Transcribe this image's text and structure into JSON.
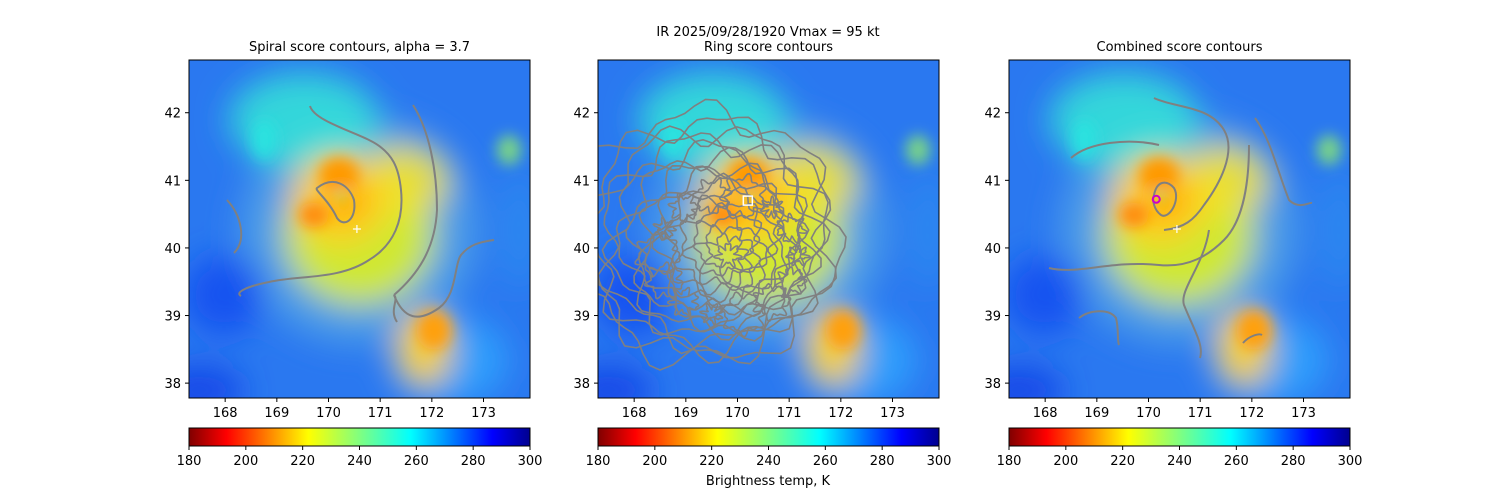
{
  "figure": {
    "suptitle_line1": "IR  2025/09/28/1920    Vmax = 95 kt",
    "colorbar_label": "Brightness temp, K"
  },
  "chart_data": [
    {
      "type": "heatmap",
      "title": "Spiral score contours, alpha =  3.7",
      "field": "IR brightness temperature (K)",
      "xlim": [
        167.3,
        173.9
      ],
      "ylim": [
        37.78,
        42.78
      ],
      "xticks": [
        168,
        169,
        170,
        171,
        172,
        173
      ],
      "yticks": [
        38,
        39,
        40,
        41,
        42
      ],
      "colormap": "jet_r",
      "clim": [
        180,
        300
      ],
      "colorbar_ticks": [
        180,
        200,
        220,
        240,
        260,
        280,
        300
      ],
      "markers": [
        {
          "symbol": "+",
          "color": "#ffffff",
          "lon": 170.55,
          "lat": 40.28
        }
      ],
      "contour_color": "#808080"
    },
    {
      "type": "heatmap",
      "title": "Ring score contours",
      "field": "IR brightness temperature (K)",
      "xlim": [
        167.3,
        173.9
      ],
      "ylim": [
        37.78,
        42.78
      ],
      "xticks": [
        168,
        169,
        170,
        171,
        172,
        173
      ],
      "yticks": [
        38,
        39,
        40,
        41,
        42
      ],
      "colormap": "jet_r",
      "clim": [
        180,
        300
      ],
      "colorbar_ticks": [
        180,
        200,
        220,
        240,
        260,
        280,
        300
      ],
      "markers": [
        {
          "symbol": "square",
          "color": "#ffffff",
          "lon": 170.2,
          "lat": 40.7
        }
      ],
      "contour_color": "#808080"
    },
    {
      "type": "heatmap",
      "title": "Combined score contours",
      "field": "IR brightness temperature (K)",
      "xlim": [
        167.3,
        173.9
      ],
      "ylim": [
        37.78,
        42.78
      ],
      "xticks": [
        168,
        169,
        170,
        171,
        172,
        173
      ],
      "yticks": [
        38,
        39,
        40,
        41,
        42
      ],
      "colormap": "jet_r",
      "clim": [
        180,
        300
      ],
      "colorbar_ticks": [
        180,
        200,
        220,
        240,
        260,
        280,
        300
      ],
      "markers": [
        {
          "symbol": "+",
          "color": "#ffffff",
          "lon": 170.55,
          "lat": 40.28
        },
        {
          "symbol": "circle",
          "color": "#cc00cc",
          "lon": 170.15,
          "lat": 40.72
        }
      ],
      "contour_color": "#808080"
    }
  ]
}
